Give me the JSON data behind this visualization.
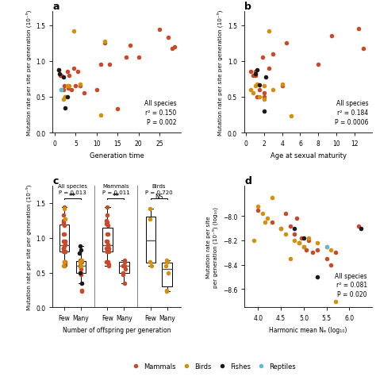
{
  "colors": {
    "mammals": "#C94A2A",
    "birds": "#D4900A",
    "fishes": "#1A1A1A",
    "reptiles": "#5BBCD6"
  },
  "panel_a": {
    "title": "a",
    "xlabel": "Generation time",
    "ylabel": "Mutation rate per site per generation (10⁻⁹)",
    "annotation": "All species\nr² = 0.150\nP = 0.002",
    "xlim": [
      -0.5,
      30
    ],
    "ylim": [
      0,
      1.7
    ],
    "yticks": [
      0,
      0.5,
      1.0,
      1.5
    ],
    "xticks": [
      0,
      5,
      10,
      15,
      20,
      25
    ],
    "data": {
      "mammals": {
        "x": [
          1.0,
          1.3,
          1.5,
          2.0,
          2.2,
          2.5,
          3.0,
          3.2,
          3.5,
          4.0,
          4.5,
          5.0,
          5.5,
          6.0,
          7.0,
          10.0,
          11.0,
          12.0,
          13.0,
          15.0,
          17.0,
          18.0,
          20.0,
          25.0,
          27.0,
          28.0,
          28.5
        ],
        "y": [
          0.88,
          0.8,
          0.8,
          0.6,
          0.65,
          0.5,
          0.85,
          0.62,
          0.8,
          0.6,
          0.9,
          0.65,
          0.85,
          0.65,
          0.55,
          0.6,
          0.95,
          1.25,
          0.95,
          0.33,
          1.05,
          1.22,
          1.05,
          1.44,
          1.33,
          1.18,
          1.2
        ]
      },
      "birds": {
        "x": [
          1.5,
          2.0,
          2.5,
          3.0,
          3.5,
          4.5,
          6.0,
          11.0,
          12.0
        ],
        "y": [
          0.6,
          0.47,
          0.5,
          0.65,
          0.65,
          1.42,
          0.68,
          0.24,
          1.27
        ]
      },
      "fishes": {
        "x": [
          1.0,
          1.2,
          2.0,
          2.5,
          3.0
        ],
        "y": [
          0.88,
          0.82,
          0.78,
          0.35,
          0.5
        ]
      },
      "reptiles": {
        "x": [
          1.5
        ],
        "y": [
          0.6
        ]
      }
    }
  },
  "panel_b": {
    "title": "b",
    "xlabel": "Age at sexual maturity",
    "ylabel": "Mutation rate per site per generation (10⁻⁹)",
    "annotation": "All species\nr² = 0.184\nP = 0.0006",
    "xlim": [
      -0.2,
      14
    ],
    "ylim": [
      0,
      1.7
    ],
    "yticks": [
      0,
      0.5,
      1.0,
      1.5
    ],
    "xticks": [
      0,
      2,
      4,
      6,
      8,
      10,
      12
    ],
    "data": {
      "mammals": {
        "x": [
          0.5,
          0.8,
          1.0,
          1.0,
          1.2,
          1.5,
          1.8,
          2.0,
          2.0,
          2.5,
          3.0,
          4.0,
          4.5,
          8.0,
          9.5,
          12.5,
          13.0
        ],
        "y": [
          0.85,
          0.8,
          0.85,
          0.8,
          0.5,
          0.6,
          1.05,
          0.55,
          0.5,
          0.9,
          1.1,
          0.65,
          1.25,
          0.95,
          1.35,
          1.45,
          1.18
        ]
      },
      "birds": {
        "x": [
          0.5,
          0.8,
          1.0,
          1.2,
          1.5,
          2.0,
          2.0,
          2.5,
          3.0,
          4.0,
          5.0
        ],
        "y": [
          0.6,
          0.55,
          0.65,
          0.68,
          0.5,
          0.47,
          0.65,
          1.42,
          0.6,
          0.68,
          0.23
        ]
      },
      "fishes": {
        "x": [
          1.0,
          1.2,
          1.5,
          2.0,
          2.2
        ],
        "y": [
          0.82,
          0.88,
          0.67,
          0.3,
          0.78
        ]
      }
    }
  },
  "panel_c": {
    "title": "c",
    "xlabel": "Number of offspring per generation",
    "ylabel": "Mutation rate per site per generation (10⁻⁹)",
    "ylim": [
      0,
      1.75
    ],
    "yticks": [
      0,
      0.5,
      1.0,
      1.5
    ],
    "groups": {
      "all_few_mammals": [
        0.88,
        0.8,
        0.8,
        0.65,
        0.85,
        0.8,
        0.85,
        0.62,
        0.6,
        0.9,
        0.85,
        0.65,
        0.95,
        1.25,
        0.95,
        1.05,
        1.22,
        1.05,
        1.44,
        1.33,
        1.18,
        1.2
      ],
      "all_few_birds": [
        0.6,
        0.65,
        1.42,
        1.27
      ],
      "all_many_mammals": [
        0.6,
        0.5,
        0.55,
        0.65,
        0.47,
        0.6,
        0.68,
        0.65,
        0.24,
        0.23
      ],
      "all_many_birds": [
        0.5,
        0.65,
        0.68,
        0.6
      ],
      "all_many_fishes": [
        0.88,
        0.82,
        0.78,
        0.35,
        0.5
      ],
      "mammals_few": [
        0.88,
        0.8,
        0.8,
        0.65,
        0.85,
        0.8,
        0.85,
        0.62,
        0.6,
        0.9,
        0.85,
        0.65,
        0.95,
        1.25,
        0.95,
        1.05,
        1.22,
        1.05,
        1.44,
        1.33,
        1.18,
        1.2
      ],
      "mammals_many": [
        0.6,
        0.5,
        0.55,
        0.65,
        0.47,
        0.6,
        0.68,
        0.65,
        0.35
      ],
      "birds_few": [
        0.6,
        0.65,
        1.42,
        1.27
      ],
      "birds_many": [
        0.5,
        0.65,
        0.68,
        0.6,
        0.24,
        0.23
      ]
    }
  },
  "panel_d": {
    "title": "d",
    "xlabel": "Harmonic mean Nₑ (log₁₀)",
    "ylabel": "Mutation rate per site\nper generation (10⁻⁹) (log₁₀)",
    "annotation": "All species\nr² = 0.081\nP = 0.020",
    "xlim": [
      3.7,
      6.5
    ],
    "ylim": [
      -8.75,
      -7.75
    ],
    "xticks": [
      4.0,
      4.5,
      5.0,
      5.5,
      6.0
    ],
    "yticks": [
      -8.6,
      -8.4,
      -8.2,
      -8.0
    ],
    "data": {
      "mammals": {
        "x": [
          4.0,
          4.3,
          4.5,
          4.6,
          4.7,
          4.8,
          4.85,
          4.9,
          4.95,
          5.0,
          5.05,
          5.1,
          5.2,
          5.3,
          5.5,
          5.6,
          5.7,
          6.2
        ],
        "y": [
          -7.95,
          -8.05,
          -8.1,
          -7.98,
          -8.08,
          -8.15,
          -8.02,
          -8.22,
          -8.18,
          -8.25,
          -8.28,
          -8.2,
          -8.3,
          -8.28,
          -8.35,
          -8.4,
          -8.3,
          -8.08
        ]
      },
      "birds": {
        "x": [
          3.9,
          4.0,
          4.1,
          4.15,
          4.2,
          4.3,
          4.5,
          4.6,
          4.7,
          4.8,
          4.9,
          5.0,
          5.1,
          5.3,
          5.5,
          5.6,
          5.7
        ],
        "y": [
          -8.2,
          -7.92,
          -7.98,
          -8.05,
          -8.02,
          -7.85,
          -8.1,
          -8.15,
          -8.35,
          -8.2,
          -8.22,
          -8.25,
          -8.18,
          -8.22,
          -8.25,
          -8.28,
          -8.7
        ]
      },
      "fishes": {
        "x": [
          4.8,
          5.0,
          5.3,
          6.25
        ],
        "y": [
          -8.1,
          -8.18,
          -8.5,
          -8.1
        ]
      },
      "reptiles": {
        "x": [
          5.5
        ],
        "y": [
          -8.25
        ]
      }
    }
  },
  "legend": {
    "mammals": "Mammals",
    "birds": "Birds",
    "fishes": "Fishes",
    "reptiles": "Reptiles"
  }
}
